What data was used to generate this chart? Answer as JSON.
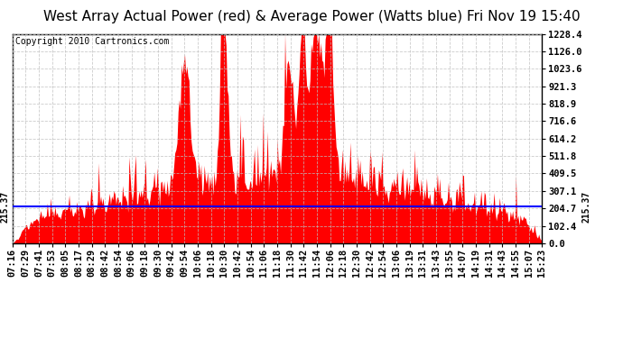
{
  "title": "West Array Actual Power (red) & Average Power (Watts blue) Fri Nov 19 15:40",
  "copyright": "Copyright 2010 Cartronics.com",
  "average_power": 215.37,
  "y_max": 1228.4,
  "y_ticks": [
    0.0,
    102.4,
    204.7,
    307.1,
    409.5,
    511.8,
    614.2,
    716.6,
    818.9,
    921.3,
    1023.6,
    1126.0,
    1228.4
  ],
  "fill_color": "#FF0000",
  "line_color": "#0000FF",
  "avg_label": "215.37",
  "background_color": "#FFFFFF",
  "grid_color": "#C0C0C0",
  "title_fontsize": 11,
  "copyright_fontsize": 7,
  "tick_fontsize": 7.5,
  "x_tick_labels": [
    "07:16",
    "07:29",
    "07:41",
    "07:53",
    "08:05",
    "08:17",
    "08:29",
    "08:42",
    "08:54",
    "09:06",
    "09:18",
    "09:30",
    "09:42",
    "09:54",
    "10:06",
    "10:18",
    "10:30",
    "10:42",
    "10:54",
    "11:06",
    "11:18",
    "11:30",
    "11:42",
    "11:54",
    "12:06",
    "12:18",
    "12:30",
    "12:42",
    "12:54",
    "13:06",
    "13:19",
    "13:31",
    "13:43",
    "13:55",
    "14:07",
    "14:19",
    "14:31",
    "14:43",
    "14:55",
    "15:07",
    "15:23"
  ]
}
